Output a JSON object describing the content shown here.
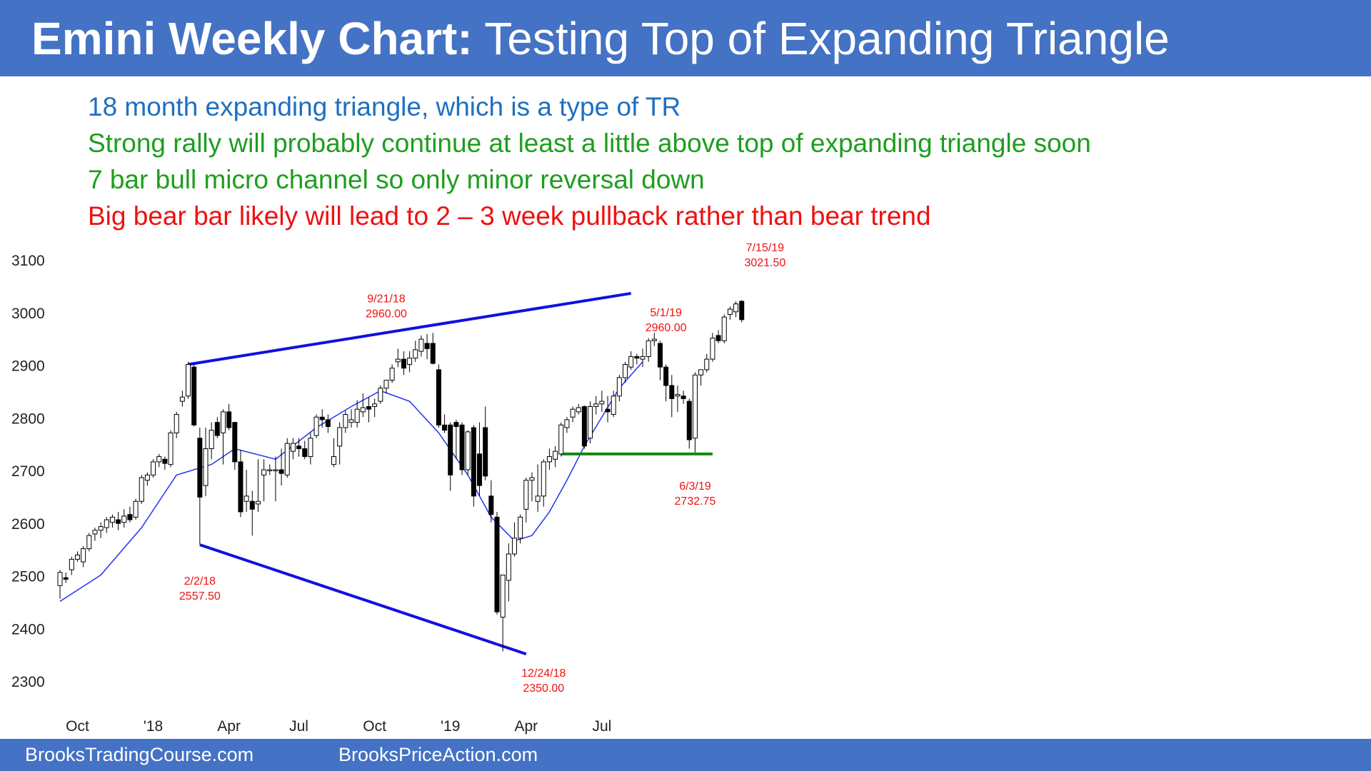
{
  "header": {
    "title_bold": "Emini Weekly Chart:",
    "title_rest": " Testing Top of Expanding Triangle"
  },
  "notes": [
    {
      "text": "18 month expanding triangle, which is a type of TR",
      "color": "#1f6fbf"
    },
    {
      "text": "Strong rally will probably continue at least a little above top of expanding triangle soon",
      "color": "#1e9e1e"
    },
    {
      "text": "7 bar bull micro channel so only minor reversal down",
      "color": "#1e9e1e"
    },
    {
      "text": "Big bear bar likely will lead to 2 – 3 week pullback rather than bear trend",
      "color": "#ee1111"
    }
  ],
  "footer": {
    "left": "BrooksTradingCourse.com",
    "right": "BrooksPriceAction.com"
  },
  "colors": {
    "header_bg": "#4472c4",
    "triangle": "#1010e0",
    "support": "#118811",
    "ma": "#2233ee",
    "annotation": "#ee1111"
  },
  "chart_data": {
    "type": "candlestick",
    "ylim": [
      2300,
      3100
    ],
    "yticks": [
      "2300",
      "2400",
      "2500",
      "2600",
      "2700",
      "2800",
      "2900",
      "3000",
      "3100"
    ],
    "xticks": [
      {
        "label": "Oct",
        "bar": 3
      },
      {
        "label": "'18",
        "bar": 16
      },
      {
        "label": "Apr",
        "bar": 29
      },
      {
        "label": "Jul",
        "bar": 41
      },
      {
        "label": "Oct",
        "bar": 54
      },
      {
        "label": "'19",
        "bar": 67
      },
      {
        "label": "Apr",
        "bar": 80
      },
      {
        "label": "Jul",
        "bar": 93
      }
    ],
    "candles": [
      [
        2480,
        2510,
        2455,
        2505
      ],
      [
        2495,
        2505,
        2485,
        2492
      ],
      [
        2510,
        2535,
        2500,
        2530
      ],
      [
        2530,
        2545,
        2525,
        2538
      ],
      [
        2525,
        2555,
        2515,
        2550
      ],
      [
        2550,
        2580,
        2545,
        2575
      ],
      [
        2578,
        2590,
        2565,
        2585
      ],
      [
        2585,
        2600,
        2570,
        2592
      ],
      [
        2590,
        2610,
        2580,
        2605
      ],
      [
        2600,
        2615,
        2590,
        2610
      ],
      [
        2605,
        2620,
        2585,
        2598
      ],
      [
        2600,
        2625,
        2590,
        2612
      ],
      [
        2615,
        2630,
        2600,
        2605
      ],
      [
        2610,
        2645,
        2605,
        2640
      ],
      [
        2640,
        2690,
        2635,
        2685
      ],
      [
        2680,
        2695,
        2670,
        2690
      ],
      [
        2690,
        2720,
        2685,
        2715
      ],
      [
        2715,
        2730,
        2705,
        2725
      ],
      [
        2720,
        2725,
        2700,
        2712
      ],
      [
        2710,
        2775,
        2705,
        2770
      ],
      [
        2770,
        2810,
        2760,
        2805
      ],
      [
        2830,
        2850,
        2820,
        2838
      ],
      [
        2840,
        2905,
        2835,
        2900
      ],
      [
        2895,
        2902,
        2782,
        2785
      ],
      [
        2760,
        2780,
        2558,
        2648
      ],
      [
        2670,
        2780,
        2650,
        2740
      ],
      [
        2740,
        2790,
        2720,
        2775
      ],
      [
        2790,
        2800,
        2760,
        2765
      ],
      [
        2770,
        2815,
        2710,
        2810
      ],
      [
        2810,
        2825,
        2775,
        2780
      ],
      [
        2790,
        2790,
        2700,
        2715
      ],
      [
        2715,
        2738,
        2610,
        2620
      ],
      [
        2640,
        2700,
        2620,
        2650
      ],
      [
        2640,
        2660,
        2575,
        2625
      ],
      [
        2635,
        2720,
        2620,
        2640
      ],
      [
        2690,
        2720,
        2640,
        2700
      ],
      [
        2698,
        2710,
        2690,
        2700
      ],
      [
        2700,
        2725,
        2640,
        2700
      ],
      [
        2700,
        2740,
        2670,
        2693
      ],
      [
        2690,
        2760,
        2685,
        2750
      ],
      [
        2735,
        2760,
        2720,
        2750
      ],
      [
        2745,
        2760,
        2725,
        2740
      ],
      [
        2740,
        2755,
        2720,
        2725
      ],
      [
        2725,
        2770,
        2710,
        2760
      ],
      [
        2765,
        2805,
        2760,
        2800
      ],
      [
        2800,
        2815,
        2780,
        2795
      ],
      [
        2795,
        2805,
        2770,
        2782
      ],
      [
        2710,
        2760,
        2705,
        2725
      ],
      [
        2745,
        2790,
        2710,
        2780
      ],
      [
        2780,
        2812,
        2770,
        2805
      ],
      [
        2790,
        2815,
        2780,
        2795
      ],
      [
        2790,
        2832,
        2780,
        2815
      ],
      [
        2810,
        2845,
        2800,
        2818
      ],
      [
        2820,
        2838,
        2790,
        2815
      ],
      [
        2820,
        2835,
        2800,
        2825
      ],
      [
        2830,
        2860,
        2825,
        2855
      ],
      [
        2855,
        2870,
        2845,
        2870
      ],
      [
        2870,
        2900,
        2865,
        2893
      ],
      [
        2905,
        2930,
        2895,
        2910
      ],
      [
        2910,
        2925,
        2880,
        2893
      ],
      [
        2900,
        2925,
        2885,
        2912
      ],
      [
        2912,
        2945,
        2905,
        2928
      ],
      [
        2925,
        2955,
        2915,
        2948
      ],
      [
        2940,
        2958,
        2910,
        2930
      ],
      [
        2940,
        2960,
        2900,
        2902
      ],
      [
        2890,
        2900,
        2780,
        2785
      ],
      [
        2785,
        2805,
        2770,
        2775
      ],
      [
        2785,
        2790,
        2660,
        2690
      ],
      [
        2790,
        2795,
        2720,
        2782
      ],
      [
        2785,
        2790,
        2690,
        2700
      ],
      [
        2700,
        2775,
        2690,
        2772
      ],
      [
        2780,
        2785,
        2630,
        2650
      ],
      [
        2730,
        2790,
        2650,
        2670
      ],
      [
        2780,
        2820,
        2680,
        2688
      ],
      [
        2650,
        2680,
        2600,
        2615
      ],
      [
        2610,
        2620,
        2425,
        2430
      ],
      [
        2420,
        2500,
        2355,
        2500
      ],
      [
        2490,
        2560,
        2450,
        2540
      ],
      [
        2540,
        2600,
        2535,
        2570
      ],
      [
        2570,
        2615,
        2560,
        2610
      ],
      [
        2625,
        2685,
        2600,
        2680
      ],
      [
        2680,
        2695,
        2640,
        2685
      ],
      [
        2640,
        2710,
        2620,
        2650
      ],
      [
        2650,
        2720,
        2630,
        2715
      ],
      [
        2715,
        2740,
        2700,
        2725
      ],
      [
        2720,
        2745,
        2705,
        2735
      ],
      [
        2730,
        2790,
        2725,
        2785
      ],
      [
        2780,
        2800,
        2770,
        2795
      ],
      [
        2800,
        2820,
        2790,
        2815
      ],
      [
        2810,
        2825,
        2805,
        2818
      ],
      [
        2820,
        2822,
        2740,
        2745
      ],
      [
        2760,
        2830,
        2750,
        2820
      ],
      [
        2820,
        2840,
        2805,
        2825
      ],
      [
        2825,
        2850,
        2810,
        2830
      ],
      [
        2815,
        2840,
        2790,
        2810
      ],
      [
        2805,
        2850,
        2800,
        2840
      ],
      [
        2840,
        2880,
        2830,
        2875
      ],
      [
        2875,
        2905,
        2865,
        2900
      ],
      [
        2895,
        2925,
        2890,
        2915
      ],
      [
        2915,
        2920,
        2900,
        2912
      ],
      [
        2910,
        2930,
        2895,
        2915
      ],
      [
        2915,
        2950,
        2905,
        2945
      ],
      [
        2945,
        2960,
        2935,
        2948
      ],
      [
        2940,
        2945,
        2870,
        2895
      ],
      [
        2895,
        2900,
        2830,
        2860
      ],
      [
        2860,
        2880,
        2800,
        2835
      ],
      [
        2840,
        2860,
        2810,
        2843
      ],
      [
        2840,
        2850,
        2825,
        2835
      ],
      [
        2830,
        2835,
        2740,
        2757
      ],
      [
        2760,
        2885,
        2733,
        2880
      ],
      [
        2880,
        2890,
        2860,
        2890
      ],
      [
        2890,
        2920,
        2885,
        2910
      ],
      [
        2910,
        2960,
        2905,
        2950
      ],
      [
        2955,
        2965,
        2940,
        2945
      ],
      [
        2945,
        2995,
        2940,
        2990
      ],
      [
        2995,
        3010,
        2985,
        3005
      ],
      [
        3000,
        3020,
        2990,
        3015
      ],
      [
        3020,
        3022,
        2980,
        2985
      ]
    ],
    "moving_average": {
      "x": [
        0,
        7,
        14,
        20,
        26,
        30,
        37,
        44,
        50,
        55,
        60,
        65,
        70,
        74,
        78,
        81,
        84,
        87,
        90,
        93,
        96,
        98,
        100
      ],
      "y": [
        2450,
        2500,
        2590,
        2690,
        2710,
        2740,
        2720,
        2780,
        2820,
        2850,
        2830,
        2770,
        2690,
        2610,
        2565,
        2575,
        2620,
        2680,
        2745,
        2800,
        2855,
        2880,
        2905
      ]
    },
    "triangle_lines": [
      {
        "from": [
          22,
          2900
        ],
        "to": [
          98,
          3035
        ]
      },
      {
        "from": [
          24,
          2557.5
        ],
        "to": [
          80,
          2350
        ]
      }
    ],
    "support_line": {
      "from": [
        86,
        2730
      ],
      "to": [
        112,
        2730
      ]
    },
    "annotations": [
      {
        "date": "9/21/18",
        "price": "2960.00",
        "bar": 56,
        "y": 2988,
        "anchor": "above"
      },
      {
        "date": "5/1/19",
        "price": "2960.00",
        "bar": 104,
        "y": 2962,
        "anchor": "above"
      },
      {
        "date": "7/15/19",
        "price": "3021.50",
        "bar": 121,
        "y": 3085,
        "anchor": "above"
      },
      {
        "date": "2/2/18",
        "price": "2557.50",
        "bar": 24,
        "y": 2505,
        "anchor": "below"
      },
      {
        "date": "6/3/19",
        "price": "2732.75",
        "bar": 109,
        "y": 2685,
        "anchor": "below"
      },
      {
        "date": "12/24/18",
        "price": "2350.00",
        "bar": 83,
        "y": 2330,
        "anchor": "below"
      }
    ]
  }
}
